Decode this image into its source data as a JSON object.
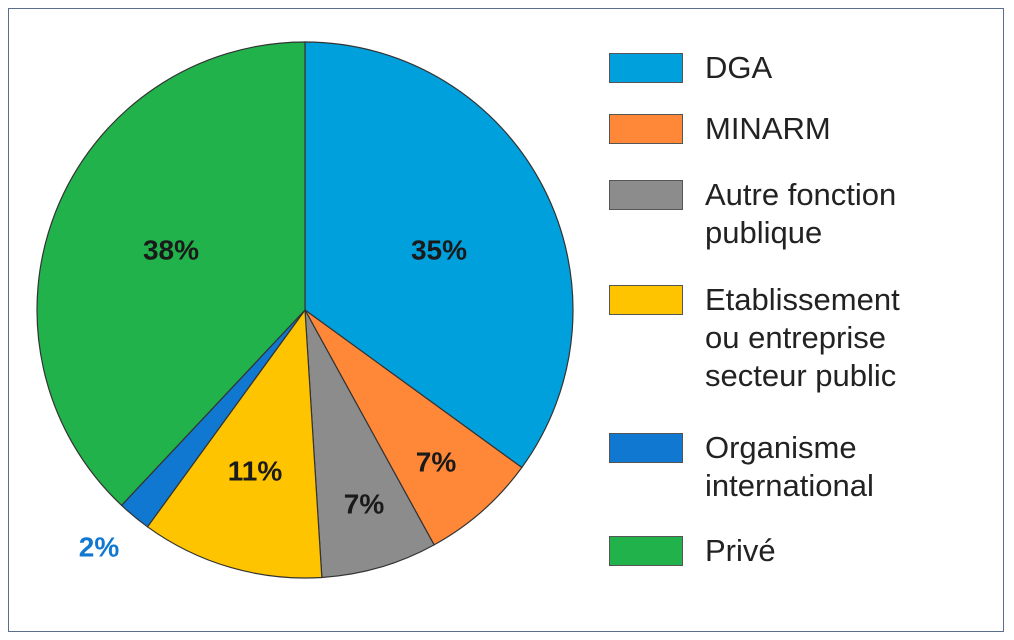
{
  "chart_data": {
    "type": "pie",
    "categories": [
      "DGA",
      "MINARM",
      "Autre fonction\npublique",
      "Etablissement\nou entreprise\nsecteur public",
      "Organisme\ninternational",
      "Privé"
    ],
    "values": [
      35,
      7,
      7,
      11,
      2,
      38
    ],
    "data_labels": [
      "35%",
      "7%",
      "7%",
      "11%",
      "2%",
      "38%"
    ],
    "colors": [
      "#00a0dc",
      "#ff8838",
      "#8c8c8c",
      "#ffc400",
      "#1078d0",
      "#21b24b"
    ],
    "label_colors": [
      "#1a1a1a",
      "#1a1a1a",
      "#1a1a1a",
      "#1a1a1a",
      "#1078d0",
      "#1a1a1a"
    ],
    "legend_position": "right",
    "title": ""
  }
}
